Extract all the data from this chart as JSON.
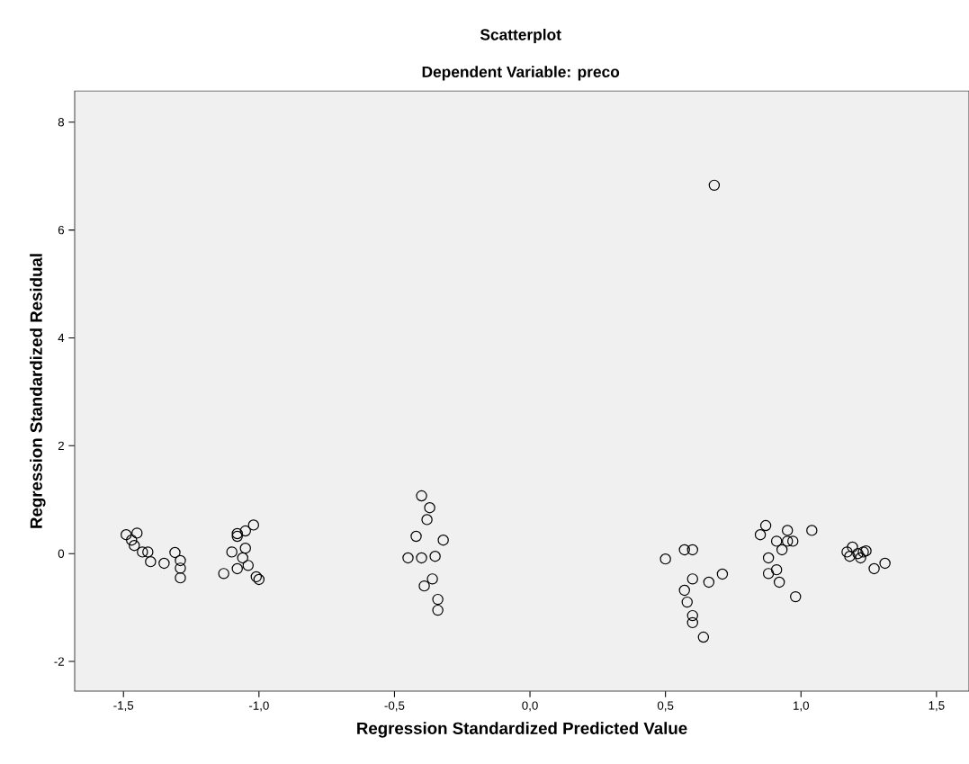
{
  "chart_data": {
    "type": "scatter",
    "title": "Scatterplot",
    "subtitle": "Dependent Variable: preco",
    "xlabel": "Regression Standardized Predicted Value",
    "ylabel": "Regression Standardized Residual",
    "xlim": [
      -1.68,
      1.62
    ],
    "ylim": [
      -2.55,
      8.58
    ],
    "xticks": [
      {
        "value": -1.5,
        "label": "-1,5"
      },
      {
        "value": -1.0,
        "label": "-1,0"
      },
      {
        "value": -0.5,
        "label": "-0,5"
      },
      {
        "value": 0.0,
        "label": "0,0"
      },
      {
        "value": 0.5,
        "label": "0,5"
      },
      {
        "value": 1.0,
        "label": "1,0"
      },
      {
        "value": 1.5,
        "label": "1,5"
      }
    ],
    "yticks": [
      -2,
      0,
      2,
      4,
      6,
      8
    ],
    "marker": "circle",
    "series": [
      {
        "color": "#000000",
        "x": [
          -1.49,
          -1.45,
          -1.47,
          -1.46,
          -1.43,
          -1.41,
          -1.4,
          -1.35,
          -1.31,
          -1.29,
          -1.29,
          -1.29,
          -1.1,
          -1.13,
          -1.08,
          -1.08,
          -1.05,
          -1.02,
          -1.05,
          -1.06,
          -1.08,
          -1.04,
          -1.01,
          -1.0,
          -0.4,
          -0.37,
          -0.38,
          -0.42,
          -0.32,
          -0.45,
          -0.4,
          -0.35,
          -0.36,
          -0.39,
          -0.34,
          -0.34,
          0.5,
          0.57,
          0.6,
          0.6,
          0.57,
          0.58,
          0.6,
          0.6,
          0.64,
          0.66,
          0.71,
          0.68,
          0.87,
          0.85,
          0.91,
          0.95,
          0.95,
          0.97,
          0.93,
          0.88,
          0.91,
          0.88,
          0.92,
          0.98,
          1.04,
          1.17,
          1.19,
          1.21,
          1.22,
          1.23,
          1.24,
          1.18,
          1.27,
          1.31
        ],
        "values": [
          0.35,
          0.38,
          0.25,
          0.15,
          0.03,
          0.03,
          -0.15,
          -0.18,
          0.02,
          -0.13,
          -0.27,
          -0.45,
          0.03,
          -0.37,
          0.37,
          0.32,
          0.42,
          0.53,
          0.1,
          -0.08,
          -0.28,
          -0.22,
          -0.43,
          -0.48,
          1.07,
          0.85,
          0.63,
          0.32,
          0.25,
          -0.08,
          -0.08,
          -0.05,
          -0.47,
          -0.6,
          -0.85,
          -1.05,
          -0.1,
          0.07,
          0.07,
          -0.47,
          -0.68,
          -0.9,
          -1.15,
          -1.28,
          -1.55,
          -0.53,
          -0.38,
          6.83,
          0.52,
          0.35,
          0.23,
          0.43,
          0.23,
          0.23,
          0.07,
          -0.08,
          -0.3,
          -0.37,
          -0.53,
          -0.8,
          0.43,
          0.03,
          0.12,
          0.0,
          -0.08,
          0.03,
          0.05,
          -0.05,
          -0.28,
          -0.18
        ]
      }
    ]
  }
}
